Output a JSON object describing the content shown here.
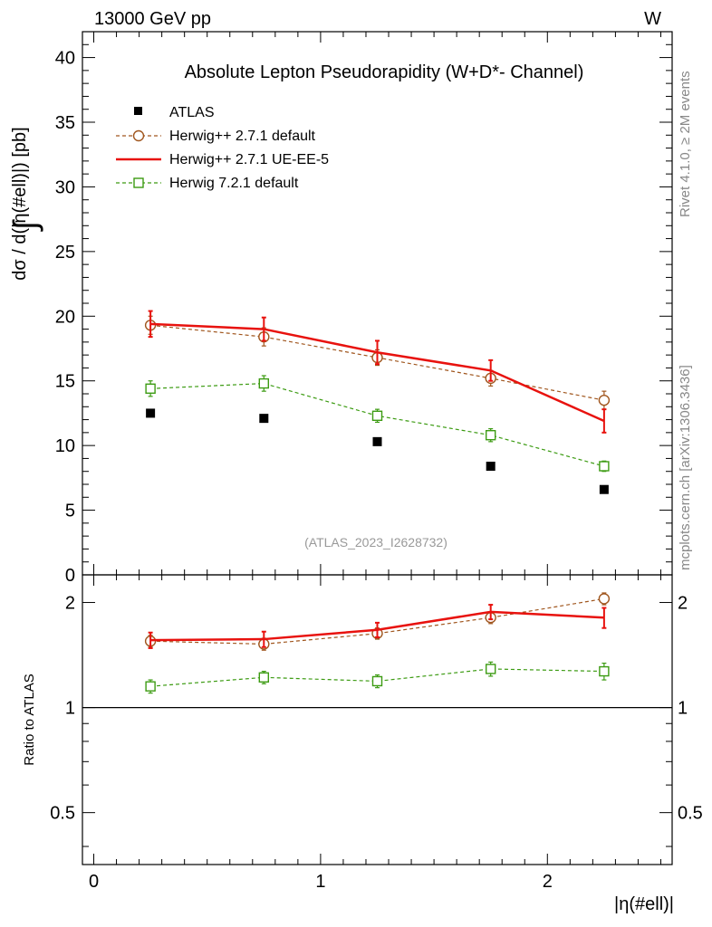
{
  "header": {
    "left": "13000 GeV pp",
    "right": "W"
  },
  "side_labels": {
    "top": "Rivet 4.1.0, ≥ 2M events",
    "bottom": "mcplots.cern.ch [arXiv:1306.3436]"
  },
  "chart_data": {
    "type": "line",
    "title": "Absolute Lepton Pseudorapidity (W+D*- Channel)",
    "watermark": "(ATLAS_2023_I2628732)",
    "xlabel": "|η(#ell)|",
    "ylabel": "dσ / d(|η(#ell)|) [pb]",
    "ylabel_prefix": "∫",
    "ratio_ylabel": "Ratio to ATLAS",
    "xlim": [
      -0.05,
      2.55
    ],
    "ylim": [
      0,
      42
    ],
    "ratio_ylim": [
      0.355,
      2.4
    ],
    "x_ticks": [
      0,
      1,
      2
    ],
    "x_tick_labels": [
      "0",
      "1",
      "2"
    ],
    "y_ticks": [
      0,
      5,
      10,
      15,
      20,
      25,
      30,
      35,
      40
    ],
    "y_tick_labels": [
      "0",
      "5",
      "10",
      "15",
      "20",
      "25",
      "30",
      "35",
      "40"
    ],
    "ratio_ticks": [
      0.5,
      1,
      2
    ],
    "ratio_tick_labels": [
      "0.5",
      "1",
      "2"
    ],
    "x": [
      0.25,
      0.75,
      1.25,
      1.75,
      2.25
    ],
    "legend_position": "top-left",
    "series": [
      {
        "name": "ATLAS",
        "style": "data",
        "color": "#000000",
        "values": [
          12.5,
          12.1,
          10.3,
          8.4,
          6.6
        ]
      },
      {
        "name": "Herwig++ 2.7.1 default",
        "style": "dashed-circle",
        "color": "#a0561e",
        "values": [
          19.3,
          18.4,
          16.8,
          15.2,
          13.5
        ],
        "errors": [
          0.7,
          0.7,
          0.6,
          0.6,
          0.7
        ],
        "ratio": [
          1.55,
          1.52,
          1.63,
          1.81,
          2.05
        ],
        "ratio_errors": [
          0.06,
          0.06,
          0.06,
          0.07,
          0.08
        ]
      },
      {
        "name": "Herwig++ 2.7.1 UE-EE-5",
        "style": "solid",
        "color": "#e8120e",
        "values": [
          19.4,
          19.0,
          17.2,
          15.8,
          11.9
        ],
        "errors": [
          1.0,
          0.9,
          0.9,
          0.8,
          0.9
        ],
        "ratio": [
          1.56,
          1.57,
          1.67,
          1.88,
          1.81
        ],
        "ratio_errors": [
          0.08,
          0.08,
          0.08,
          0.09,
          0.12
        ]
      },
      {
        "name": "Herwig 7.2.1 default",
        "style": "dashed-square",
        "color": "#3c9b12",
        "values": [
          14.4,
          14.8,
          12.3,
          10.8,
          8.4
        ],
        "errors": [
          0.6,
          0.6,
          0.5,
          0.5,
          0.4
        ],
        "ratio": [
          1.15,
          1.22,
          1.19,
          1.29,
          1.27
        ],
        "ratio_errors": [
          0.05,
          0.05,
          0.05,
          0.06,
          0.07
        ]
      }
    ]
  }
}
